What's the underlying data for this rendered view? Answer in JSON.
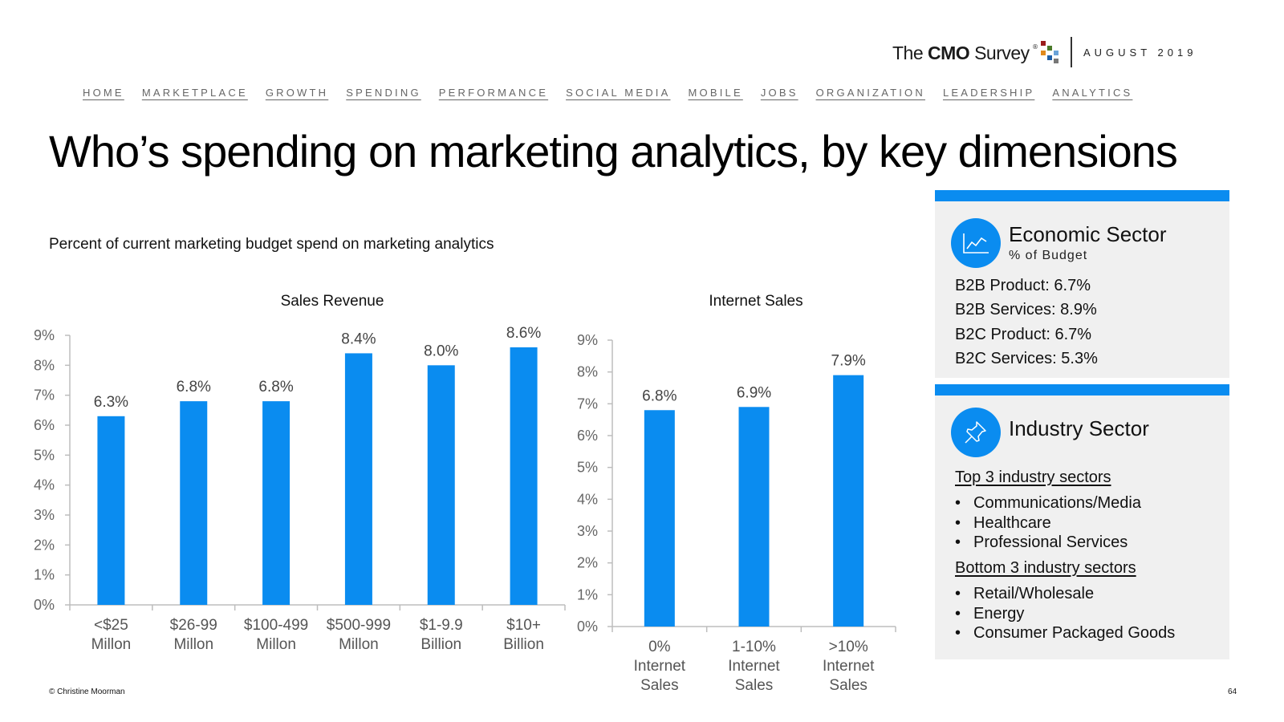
{
  "header": {
    "logo_text_the": "The ",
    "logo_text_cmo": "CMO",
    "logo_text_survey": " Survey",
    "logo_registered": "®",
    "date": "AUGUST 2019"
  },
  "nav": [
    "HOME",
    "MARKETPLACE",
    "GROWTH",
    "SPENDING",
    "PERFORMANCE",
    "SOCIAL MEDIA",
    "MOBILE",
    "JOBS",
    "ORGANIZATION",
    "LEADERSHIP",
    "ANALYTICS"
  ],
  "title": "Who’s spending on marketing analytics, by key dimensions",
  "subtitle": "Percent of current marketing budget spend on marketing analytics",
  "chart_data": [
    {
      "type": "bar",
      "title": "Sales Revenue",
      "categories": [
        [
          "<$25",
          "Millon"
        ],
        [
          "$26-99",
          "Millon"
        ],
        [
          "$100-499",
          "Millon"
        ],
        [
          "$500-999",
          "Millon"
        ],
        [
          "$1-9.9",
          "Billion"
        ],
        [
          "$10+",
          "Billion"
        ]
      ],
      "values": [
        6.3,
        6.8,
        6.8,
        8.4,
        8.0,
        8.6
      ],
      "data_labels": [
        "6.3%",
        "6.8%",
        "6.8%",
        "8.4%",
        "8.0%",
        "8.6%"
      ],
      "yticks": [
        "0%",
        "1%",
        "2%",
        "3%",
        "4%",
        "5%",
        "6%",
        "7%",
        "8%",
        "9%"
      ],
      "ylim": [
        0,
        9
      ],
      "xlabel": "",
      "ylabel": "",
      "color": "#0a8cf0"
    },
    {
      "type": "bar",
      "title": "Internet Sales",
      "categories": [
        [
          "0%",
          "Internet",
          "Sales"
        ],
        [
          "1-10%",
          "Internet",
          "Sales"
        ],
        [
          ">10%",
          "Internet",
          "Sales"
        ]
      ],
      "values": [
        6.8,
        6.9,
        7.9
      ],
      "data_labels": [
        "6.8%",
        "6.9%",
        "7.9%"
      ],
      "yticks": [
        "0%",
        "1%",
        "2%",
        "3%",
        "4%",
        "5%",
        "6%",
        "7%",
        "8%",
        "9%"
      ],
      "ylim": [
        0,
        9
      ],
      "xlabel": "",
      "ylabel": "",
      "color": "#0a8cf0"
    }
  ],
  "economic_panel": {
    "title": "Economic Sector",
    "subtitle": "% of Budget",
    "icon": "line-chart-icon",
    "lines": [
      "B2B Product: 6.7%",
      "B2B Services: 8.9%",
      "B2C Product: 6.7%",
      "B2C Services: 5.3%"
    ]
  },
  "industry_panel": {
    "title": "Industry Sector",
    "icon": "pushpin-icon",
    "top_heading": "Top 3 industry sectors",
    "top_items": [
      "Communications/Media",
      "Healthcare",
      "Professional Services"
    ],
    "bottom_heading": "Bottom 3 industry sectors",
    "bottom_items": [
      "Retail/Wholesale",
      "Energy",
      "Consumer Packaged Goods"
    ]
  },
  "footer": {
    "copyright": "© Christine Moorman",
    "page": "64"
  },
  "colors": {
    "accent": "#0a8cf0",
    "panel_bg": "#f0f0f0"
  }
}
